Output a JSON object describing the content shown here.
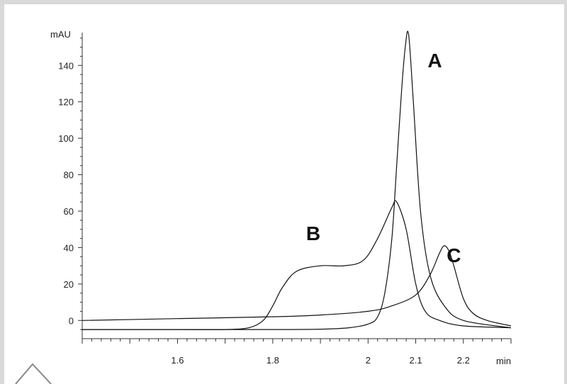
{
  "chart_data": {
    "type": "line",
    "ylabel": "mAU",
    "xlabel": "min",
    "xlim": [
      1.4,
      2.3
    ],
    "ylim": [
      -10,
      158
    ],
    "x_ticks": [
      1.6,
      1.8,
      2,
      2.1,
      2.2
    ],
    "x_tick_labels": [
      "1.6",
      "1.8",
      "2",
      "2.1",
      "2.2"
    ],
    "y_ticks": [
      0,
      20,
      40,
      60,
      80,
      100,
      120,
      140
    ],
    "y_tick_labels": [
      "0",
      "20",
      "40",
      "60",
      "80",
      "100",
      "120",
      "140"
    ],
    "grid": false,
    "annotations": [
      {
        "text": "A",
        "x": 2.14,
        "y": 139
      },
      {
        "text": "B",
        "x": 1.885,
        "y": 44
      },
      {
        "text": "C",
        "x": 2.18,
        "y": 32
      }
    ],
    "series": [
      {
        "label": "A",
        "x": [
          1.4,
          1.6,
          1.8,
          1.9,
          1.96,
          2.0,
          2.02,
          2.035,
          2.05,
          2.06,
          2.07,
          2.078,
          2.085,
          2.095,
          2.11,
          2.13,
          2.16,
          2.2,
          2.3
        ],
        "y": [
          -5,
          -5,
          -5,
          -4.8,
          -4,
          -2,
          2,
          15,
          45,
          85,
          125,
          150,
          157,
          120,
          60,
          25,
          8,
          0,
          -4
        ]
      },
      {
        "label": "B",
        "x": [
          1.4,
          1.6,
          1.7,
          1.75,
          1.78,
          1.8,
          1.82,
          1.85,
          1.9,
          1.95,
          1.99,
          2.02,
          2.05,
          2.06,
          2.08,
          2.1,
          2.12,
          2.15,
          2.2,
          2.3
        ],
        "y": [
          -5,
          -5,
          -5,
          -4,
          0,
          8,
          18,
          27,
          30,
          30,
          33,
          45,
          62,
          65,
          50,
          20,
          5,
          0,
          -3,
          -4
        ]
      },
      {
        "label": "C",
        "x": [
          1.4,
          1.6,
          1.8,
          1.9,
          2.0,
          2.05,
          2.1,
          2.13,
          2.15,
          2.16,
          2.17,
          2.18,
          2.2,
          2.22,
          2.25,
          2.3
        ],
        "y": [
          0,
          1,
          2,
          3,
          5,
          8,
          14,
          25,
          37,
          41,
          38,
          30,
          12,
          4,
          0,
          -3
        ]
      }
    ]
  }
}
